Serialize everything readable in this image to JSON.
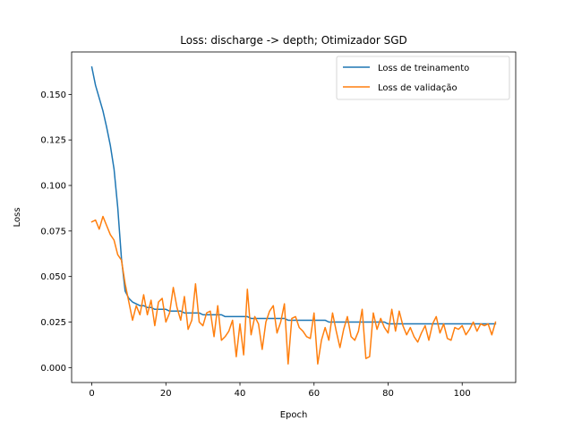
{
  "chart_data": {
    "type": "line",
    "title": "Loss: discharge -> depth; Otimizador SGD",
    "xlabel": "Epoch",
    "ylabel": "Loss",
    "xlim": [
      -5.45,
      114.45
    ],
    "ylim": [
      -0.0082,
      0.1733
    ],
    "x_ticks": [
      0,
      20,
      40,
      60,
      80,
      100
    ],
    "x_tick_labels": [
      "0",
      "20",
      "40",
      "60",
      "80",
      "100"
    ],
    "y_ticks": [
      0.0,
      0.025,
      0.05,
      0.075,
      0.1,
      0.125,
      0.15
    ],
    "y_tick_labels": [
      "0.000",
      "0.025",
      "0.050",
      "0.075",
      "0.100",
      "0.125",
      "0.150"
    ],
    "legend_position": "top-right",
    "grid": false,
    "series": [
      {
        "name": "Loss de treinamento",
        "color": "#1f77b4",
        "values": [
          0.165,
          0.155,
          0.148,
          0.141,
          0.132,
          0.122,
          0.109,
          0.088,
          0.06,
          0.042,
          0.038,
          0.036,
          0.035,
          0.034,
          0.034,
          0.033,
          0.033,
          0.032,
          0.032,
          0.032,
          0.032,
          0.031,
          0.031,
          0.031,
          0.031,
          0.03,
          0.03,
          0.03,
          0.03,
          0.03,
          0.029,
          0.029,
          0.029,
          0.029,
          0.029,
          0.029,
          0.028,
          0.028,
          0.028,
          0.028,
          0.028,
          0.028,
          0.028,
          0.027,
          0.027,
          0.027,
          0.027,
          0.027,
          0.027,
          0.027,
          0.027,
          0.027,
          0.027,
          0.026,
          0.026,
          0.026,
          0.026,
          0.026,
          0.026,
          0.026,
          0.026,
          0.026,
          0.026,
          0.026,
          0.025,
          0.025,
          0.025,
          0.025,
          0.025,
          0.025,
          0.025,
          0.025,
          0.025,
          0.025,
          0.025,
          0.025,
          0.025,
          0.025,
          0.025,
          0.025,
          0.024,
          0.024,
          0.024,
          0.024,
          0.024,
          0.024,
          0.024,
          0.024,
          0.024,
          0.024,
          0.024,
          0.024,
          0.024,
          0.024,
          0.024,
          0.024,
          0.024,
          0.024,
          0.024,
          0.024,
          0.024,
          0.024,
          0.024,
          0.024,
          0.024,
          0.024,
          0.024,
          0.024,
          0.024,
          0.024
        ]
      },
      {
        "name": "Loss de validação",
        "color": "#ff7f0e",
        "values": [
          0.08,
          0.081,
          0.076,
          0.083,
          0.078,
          0.073,
          0.07,
          0.062,
          0.059,
          0.046,
          0.036,
          0.026,
          0.034,
          0.029,
          0.04,
          0.029,
          0.037,
          0.023,
          0.036,
          0.038,
          0.025,
          0.03,
          0.044,
          0.033,
          0.026,
          0.039,
          0.021,
          0.026,
          0.046,
          0.025,
          0.023,
          0.03,
          0.031,
          0.017,
          0.034,
          0.015,
          0.017,
          0.02,
          0.026,
          0.006,
          0.024,
          0.007,
          0.043,
          0.018,
          0.028,
          0.024,
          0.01,
          0.025,
          0.031,
          0.034,
          0.019,
          0.025,
          0.035,
          0.002,
          0.027,
          0.028,
          0.022,
          0.02,
          0.017,
          0.016,
          0.03,
          0.002,
          0.015,
          0.022,
          0.015,
          0.03,
          0.02,
          0.011,
          0.021,
          0.028,
          0.017,
          0.015,
          0.02,
          0.032,
          0.005,
          0.006,
          0.03,
          0.021,
          0.027,
          0.022,
          0.019,
          0.032,
          0.02,
          0.031,
          0.023,
          0.018,
          0.022,
          0.017,
          0.014,
          0.019,
          0.023,
          0.015,
          0.024,
          0.028,
          0.019,
          0.024,
          0.016,
          0.015,
          0.022,
          0.021,
          0.023,
          0.018,
          0.021,
          0.025,
          0.02,
          0.024,
          0.023,
          0.024,
          0.018,
          0.025
        ]
      }
    ]
  }
}
